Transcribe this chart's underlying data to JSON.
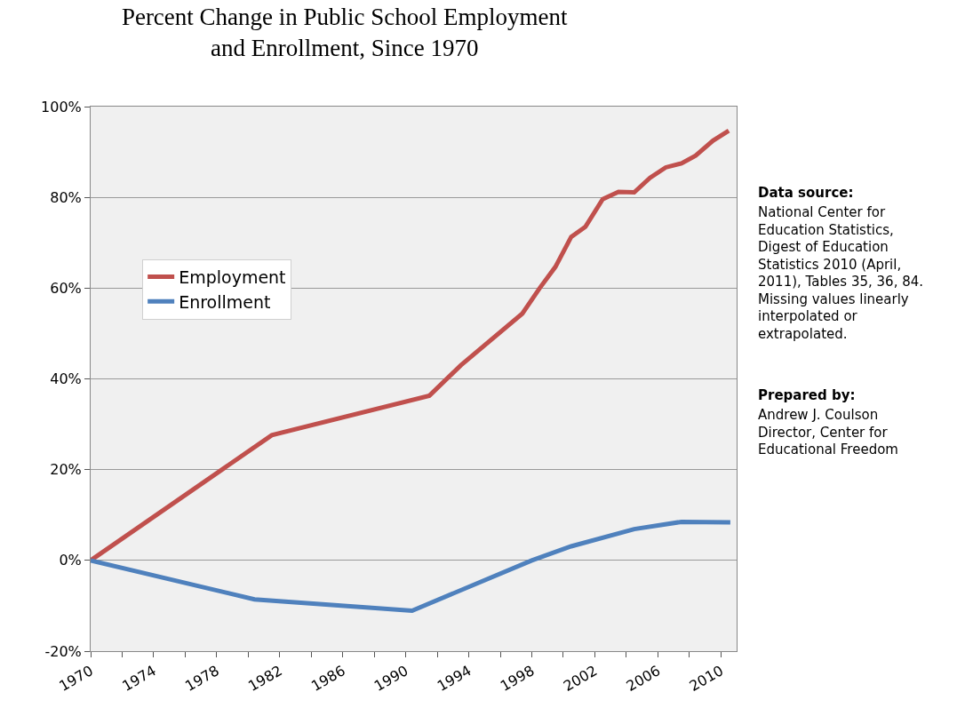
{
  "chart_data": {
    "type": "line",
    "title": "Percent Change in Public School Employment and Enrollment, Since 1970",
    "series": [
      {
        "name": "Employment",
        "color": "#c0504d",
        "x": [
          1970,
          1981.5,
          1991.5,
          1993.5,
          1997.4,
          1998.5,
          1999.5,
          2000.5,
          2001.4,
          2002.5,
          2003.5,
          2004.5,
          2005.5,
          2006.5,
          2007.5,
          2008.4,
          2009.5,
          2010.5
        ],
        "values": [
          0,
          27.6,
          36.3,
          43,
          54.4,
          60,
          64.7,
          71.3,
          73.5,
          79.6,
          81.2,
          81.1,
          84.3,
          86.6,
          87.5,
          89.2,
          92.5,
          94.7
        ]
      },
      {
        "name": "Enrollment",
        "color": "#4f81bd",
        "x": [
          1970,
          1980.4,
          1990.4,
          1998,
          2000.5,
          2004.5,
          2007.5,
          2010.6
        ],
        "values": [
          0,
          -8.6,
          -11.1,
          0,
          3.1,
          6.9,
          8.5,
          8.4
        ]
      }
    ],
    "xlim": [
      1970,
      2011
    ],
    "xticks": [
      1970,
      {
        "value": 1972,
        "label": null
      },
      1974,
      {
        "value": 1976,
        "label": null
      },
      1978,
      {
        "value": 1980,
        "label": null
      },
      1982,
      {
        "value": 1984,
        "label": null
      },
      1986,
      {
        "value": 1988,
        "label": null
      },
      1990,
      {
        "value": 1992,
        "label": null
      },
      1994,
      {
        "value": 1996,
        "label": null
      },
      1998,
      {
        "value": 2000,
        "label": null
      },
      2002,
      {
        "value": 2004,
        "label": null
      },
      2006,
      {
        "value": 2008,
        "label": null
      },
      2010
    ],
    "ylim": [
      -20,
      100
    ],
    "yticks": [
      {
        "value": -20,
        "label": "-20%"
      },
      {
        "value": 0,
        "label": "0%"
      },
      {
        "value": 20,
        "label": "20%"
      },
      {
        "value": 40,
        "label": "40%"
      },
      {
        "value": 60,
        "label": "60%"
      },
      {
        "value": 80,
        "label": "80%"
      },
      {
        "value": 100,
        "label": "100%"
      }
    ],
    "grid": "y",
    "legend": "left",
    "marker": "none",
    "line_style": "solid",
    "annotations": [
      "Data source:",
      "National Center for Education Statistics, Digest of Education Statistics 2010 (April, 2011), Tables 35, 36, 84.  Missing values linearly interpolated or extrapolated.",
      "Prepared by:",
      "Andrew J. Coulson Director, Center for Educational Freedom"
    ]
  }
}
